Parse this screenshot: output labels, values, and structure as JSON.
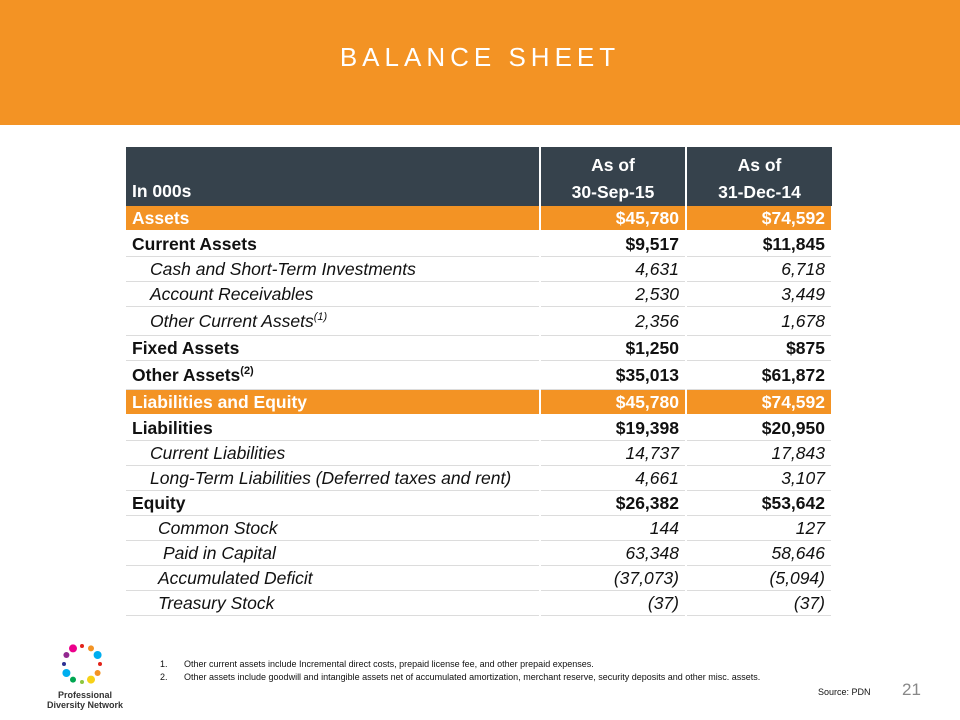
{
  "header": {
    "title": "BALANCE SHEET"
  },
  "table": {
    "columns": [
      {
        "lines": [
          "In 000s"
        ]
      },
      {
        "lines": [
          "As of",
          "30-Sep-15"
        ]
      },
      {
        "lines": [
          "As of",
          "31-Dec-14"
        ]
      }
    ],
    "rows": [
      {
        "label": "Assets",
        "v1": "$45,780",
        "v2": "$74,592"
      },
      {
        "label": "Current Assets",
        "v1": "$9,517",
        "v2": "$11,845"
      },
      {
        "label": "Cash and Short-Term Investments",
        "v1": "4,631",
        "v2": "6,718"
      },
      {
        "label": "Account Receivables",
        "v1": "2,530",
        "v2": "3,449"
      },
      {
        "label": "Other Current Assets",
        "note": "(1)",
        "v1": "2,356",
        "v2": "1,678"
      },
      {
        "label": "Fixed Assets",
        "v1": "$1,250",
        "v2": "$875"
      },
      {
        "label": "Other Assets",
        "note": "(2)",
        "v1": "$35,013",
        "v2": "$61,872"
      },
      {
        "label": "Liabilities and Equity",
        "v1": "$45,780",
        "v2": "$74,592"
      },
      {
        "label": "Liabilities",
        "v1": "$19,398",
        "v2": "$20,950"
      },
      {
        "label": "Current Liabilities",
        "v1": "14,737",
        "v2": "17,843"
      },
      {
        "label": "Long-Term Liabilities (Deferred taxes and rent)",
        "v1": "4,661",
        "v2": "3,107"
      },
      {
        "label": "Equity",
        "v1": "$26,382",
        "v2": "$53,642"
      },
      {
        "label": "Common Stock",
        "v1": "144",
        "v2": "127"
      },
      {
        "label": "Paid in Capital",
        "v1": "63,348",
        "v2": "58,646"
      },
      {
        "label": "Accumulated Deficit",
        "v1": "(37,073)",
        "v2": "(5,094)"
      },
      {
        "label": "Treasury Stock",
        "v1": "(37)",
        "v2": "(37)"
      }
    ]
  },
  "footnotes": [
    "Other current assets include Incremental direct costs, prepaid license fee, and other prepaid expenses.",
    "Other assets include goodwill and intangible assets net of accumulated amortization, merchant reserve, security deposits and other misc. assets."
  ],
  "logo": {
    "lines": [
      "Professional",
      "Diversity Network"
    ]
  },
  "source": "Source: PDN",
  "page_number": "21"
}
